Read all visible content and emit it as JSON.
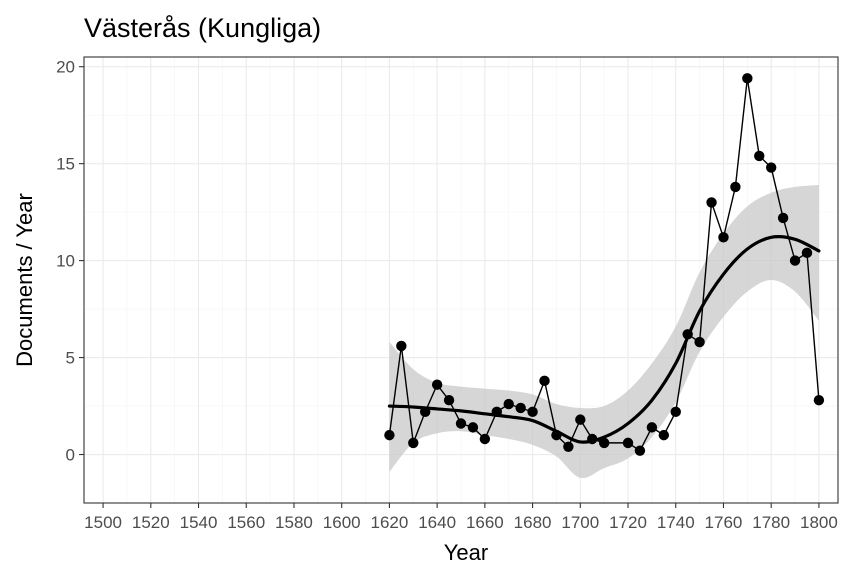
{
  "chart_data": {
    "type": "line",
    "title": "Västerås (Kungliga)",
    "xlabel": "Year",
    "ylabel": "Documents / Year",
    "xlim": [
      1492,
      1808
    ],
    "ylim": [
      -2.5,
      20.5
    ],
    "x_ticks": [
      1500,
      1520,
      1540,
      1560,
      1580,
      1600,
      1620,
      1640,
      1660,
      1680,
      1700,
      1720,
      1740,
      1760,
      1780,
      1800
    ],
    "x_tick_labels": [
      "1500",
      "1520",
      "1540",
      "1560",
      "1580",
      "1600",
      "1620",
      "1640",
      "1660",
      "1680",
      "1700",
      "1720",
      "1740",
      "1760",
      "1780",
      "1800"
    ],
    "y_ticks": [
      0,
      5,
      10,
      15,
      20
    ],
    "y_tick_labels": [
      "0",
      "5",
      "10",
      "15",
      "20"
    ],
    "grid": true,
    "theme": "bw",
    "series": [
      {
        "kind": "points-line",
        "color": "#000000",
        "points": [
          {
            "x": 1620,
            "y": 1.0
          },
          {
            "x": 1625,
            "y": 5.6
          },
          {
            "x": 1630,
            "y": 0.6
          },
          {
            "x": 1635,
            "y": 2.2
          },
          {
            "x": 1640,
            "y": 3.6
          },
          {
            "x": 1645,
            "y": 2.8
          },
          {
            "x": 1650,
            "y": 1.6
          },
          {
            "x": 1655,
            "y": 1.4
          },
          {
            "x": 1660,
            "y": 0.8
          },
          {
            "x": 1665,
            "y": 2.2
          },
          {
            "x": 1670,
            "y": 2.6
          },
          {
            "x": 1675,
            "y": 2.4
          },
          {
            "x": 1680,
            "y": 2.2
          },
          {
            "x": 1685,
            "y": 3.8
          },
          {
            "x": 1690,
            "y": 1.0
          },
          {
            "x": 1695,
            "y": 0.4
          },
          {
            "x": 1700,
            "y": 1.8
          },
          {
            "x": 1705,
            "y": 0.8
          },
          {
            "x": 1710,
            "y": 0.6
          },
          {
            "x": 1720,
            "y": 0.6
          },
          {
            "x": 1725,
            "y": 0.2
          },
          {
            "x": 1730,
            "y": 1.4
          },
          {
            "x": 1735,
            "y": 1.0
          },
          {
            "x": 1740,
            "y": 2.2
          },
          {
            "x": 1745,
            "y": 6.2
          },
          {
            "x": 1750,
            "y": 5.8
          },
          {
            "x": 1755,
            "y": 13.0
          },
          {
            "x": 1760,
            "y": 11.2
          },
          {
            "x": 1765,
            "y": 13.8
          },
          {
            "x": 1770,
            "y": 19.4
          },
          {
            "x": 1775,
            "y": 15.4
          },
          {
            "x": 1780,
            "y": 14.8
          },
          {
            "x": 1785,
            "y": 12.2
          },
          {
            "x": 1790,
            "y": 10.0
          },
          {
            "x": 1795,
            "y": 10.4
          },
          {
            "x": 1800,
            "y": 2.8
          }
        ]
      },
      {
        "kind": "smooth",
        "color": "#000000",
        "band_color": "#c8c8c8",
        "fit": [
          {
            "x": 1620,
            "y": 2.5,
            "lo": -0.9,
            "hi": 5.8
          },
          {
            "x": 1630,
            "y": 2.45,
            "lo": 0.6,
            "hi": 4.4
          },
          {
            "x": 1640,
            "y": 2.35,
            "lo": 1.1,
            "hi": 3.7
          },
          {
            "x": 1650,
            "y": 2.25,
            "lo": 1.2,
            "hi": 3.5
          },
          {
            "x": 1660,
            "y": 2.1,
            "lo": 1.0,
            "hi": 3.4
          },
          {
            "x": 1670,
            "y": 1.95,
            "lo": 0.8,
            "hi": 3.3
          },
          {
            "x": 1680,
            "y": 1.75,
            "lo": 0.5,
            "hi": 3.1
          },
          {
            "x": 1690,
            "y": 1.2,
            "lo": -0.1,
            "hi": 2.6
          },
          {
            "x": 1700,
            "y": 0.65,
            "lo": -1.2,
            "hi": 2.4
          },
          {
            "x": 1710,
            "y": 0.9,
            "lo": -0.7,
            "hi": 2.5
          },
          {
            "x": 1720,
            "y": 1.6,
            "lo": -0.2,
            "hi": 3.3
          },
          {
            "x": 1730,
            "y": 2.8,
            "lo": 0.9,
            "hi": 4.7
          },
          {
            "x": 1740,
            "y": 4.7,
            "lo": 2.7,
            "hi": 6.6
          },
          {
            "x": 1750,
            "y": 7.4,
            "lo": 5.3,
            "hi": 9.4
          },
          {
            "x": 1760,
            "y": 9.3,
            "lo": 7.1,
            "hi": 11.4
          },
          {
            "x": 1770,
            "y": 10.6,
            "lo": 8.4,
            "hi": 12.8
          },
          {
            "x": 1780,
            "y": 11.2,
            "lo": 9.0,
            "hi": 13.5
          },
          {
            "x": 1790,
            "y": 11.1,
            "lo": 8.4,
            "hi": 13.8
          },
          {
            "x": 1800,
            "y": 10.5,
            "lo": 6.9,
            "hi": 13.9
          }
        ]
      }
    ]
  }
}
